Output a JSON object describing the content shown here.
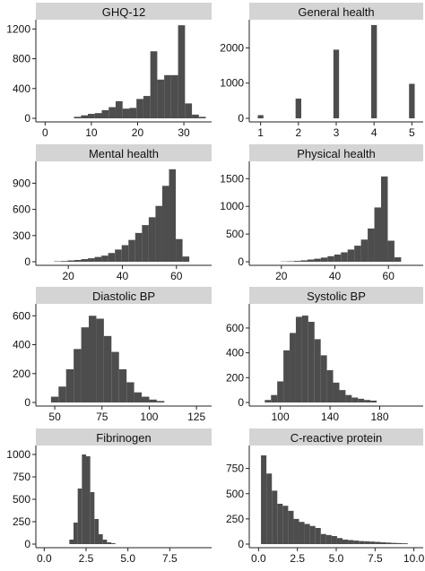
{
  "chart_data": [
    {
      "type": "bar",
      "title": "GHQ-12",
      "xlabel": "",
      "ylabel": "",
      "xlim": [
        -2,
        36
      ],
      "ylim": [
        0,
        1300
      ],
      "xticks": [
        0,
        10,
        20,
        30
      ],
      "yticks": [
        0,
        400,
        800,
        1200
      ],
      "binwidth": 1.5,
      "bins_x": [
        7,
        8.5,
        10,
        11.5,
        13,
        14.5,
        16,
        17.5,
        19,
        20.5,
        22,
        23.5,
        25,
        26.5,
        28,
        29.5,
        31,
        32.5,
        34
      ],
      "values": [
        20,
        40,
        60,
        70,
        110,
        150,
        230,
        130,
        140,
        260,
        300,
        900,
        520,
        580,
        580,
        1250,
        200,
        50,
        20
      ]
    },
    {
      "type": "bar",
      "title": "General health",
      "xlabel": "",
      "ylabel": "",
      "xlim": [
        0.7,
        5.3
      ],
      "ylim": [
        0,
        2750
      ],
      "xticks": [
        1,
        2,
        3,
        4,
        5
      ],
      "yticks": [
        0,
        1000,
        2000
      ],
      "binwidth": 0.15,
      "bins_x": [
        1,
        2,
        3,
        4,
        5
      ],
      "values": [
        90,
        560,
        1950,
        2650,
        980
      ]
    },
    {
      "type": "bar",
      "title": "Mental health",
      "xlabel": "",
      "ylabel": "",
      "xlim": [
        8,
        73
      ],
      "ylim": [
        0,
        1130
      ],
      "xticks": [
        20,
        40,
        60
      ],
      "yticks": [
        0,
        300,
        600,
        900
      ],
      "binwidth": 2.5,
      "bins_x": [
        16,
        18.5,
        21,
        23.5,
        26,
        28.5,
        31,
        33.5,
        36,
        38.5,
        41,
        43.5,
        46,
        48.5,
        51,
        53.5,
        56,
        58.5,
        61,
        63.5
      ],
      "values": [
        5,
        8,
        15,
        20,
        30,
        40,
        55,
        70,
        100,
        140,
        190,
        250,
        330,
        420,
        510,
        640,
        870,
        1060,
        260,
        60
      ]
    },
    {
      "type": "bar",
      "title": "Physical health",
      "xlabel": "",
      "ylabel": "",
      "xlim": [
        8,
        73
      ],
      "ylim": [
        0,
        1780
      ],
      "xticks": [
        20,
        40,
        60
      ],
      "yticks": [
        0,
        500,
        1000,
        1500
      ],
      "binwidth": 2.5,
      "bins_x": [
        21,
        23.5,
        26,
        28.5,
        31,
        33.5,
        36,
        38.5,
        41,
        43.5,
        46,
        48.5,
        51,
        53.5,
        56,
        58.5,
        61,
        63.5
      ],
      "values": [
        5,
        8,
        15,
        25,
        40,
        55,
        75,
        100,
        130,
        170,
        220,
        290,
        400,
        600,
        980,
        1540,
        380,
        80
      ]
    },
    {
      "type": "bar",
      "title": "Diastolic BP",
      "xlabel": "",
      "ylabel": "",
      "xlim": [
        40,
        133
      ],
      "ylim": [
        0,
        670
      ],
      "xticks": [
        50,
        75,
        100,
        125
      ],
      "yticks": [
        0,
        200,
        400,
        600
      ],
      "binwidth": 4,
      "bins_x": [
        50,
        54,
        58,
        62,
        66,
        70,
        74,
        78,
        82,
        86,
        90,
        94,
        98,
        102,
        106
      ],
      "values": [
        40,
        110,
        230,
        370,
        520,
        600,
        580,
        460,
        350,
        230,
        140,
        70,
        40,
        20,
        10
      ]
    },
    {
      "type": "bar",
      "title": "Systolic BP",
      "xlabel": "",
      "ylabel": "",
      "xlim": [
        75,
        215
      ],
      "ylim": [
        0,
        780
      ],
      "xticks": [
        100,
        140,
        180
      ],
      "yticks": [
        0,
        200,
        400,
        600
      ],
      "binwidth": 5,
      "bins_x": [
        90,
        95,
        100,
        105,
        110,
        115,
        120,
        125,
        130,
        135,
        140,
        145,
        150,
        155,
        160,
        165,
        170,
        175
      ],
      "values": [
        20,
        60,
        170,
        420,
        560,
        690,
        700,
        650,
        510,
        380,
        260,
        160,
        100,
        60,
        40,
        30,
        20,
        15
      ]
    },
    {
      "type": "bar",
      "title": "Fibrinogen",
      "xlabel": "",
      "ylabel": "",
      "xlim": [
        -0.5,
        10
      ],
      "ylim": [
        0,
        1080
      ],
      "xticks": [
        0.0,
        2.5,
        5.0,
        7.5
      ],
      "yticks": [
        0,
        250,
        500,
        750,
        1000
      ],
      "binwidth": 0.25,
      "bins_x": [
        1.625,
        1.875,
        2.125,
        2.375,
        2.625,
        2.875,
        3.125,
        3.375,
        3.625,
        3.875,
        4.125
      ],
      "values": [
        50,
        240,
        620,
        1000,
        980,
        580,
        280,
        110,
        50,
        20,
        10
      ]
    },
    {
      "type": "bar",
      "title": "C-reactive protein",
      "xlabel": "",
      "ylabel": "",
      "xlim": [
        -0.6,
        10.6
      ],
      "ylim": [
        0,
        960
      ],
      "xticks": [
        0.0,
        2.5,
        5.0,
        7.5,
        10.0
      ],
      "yticks": [
        0,
        250,
        500,
        750
      ],
      "binwidth": 0.35,
      "bins_x": [
        0.33,
        0.68,
        1.03,
        1.38,
        1.73,
        2.08,
        2.43,
        2.78,
        3.13,
        3.48,
        3.83,
        4.18,
        4.53,
        4.88,
        5.23,
        5.58,
        5.93,
        6.28,
        6.63,
        6.98,
        7.33,
        7.68,
        8.03,
        8.38,
        8.73,
        9.08,
        9.43
      ],
      "values": [
        880,
        700,
        530,
        400,
        380,
        330,
        250,
        220,
        200,
        180,
        160,
        100,
        90,
        80,
        60,
        45,
        40,
        35,
        30,
        28,
        25,
        22,
        18,
        15,
        12,
        10,
        8
      ]
    }
  ]
}
